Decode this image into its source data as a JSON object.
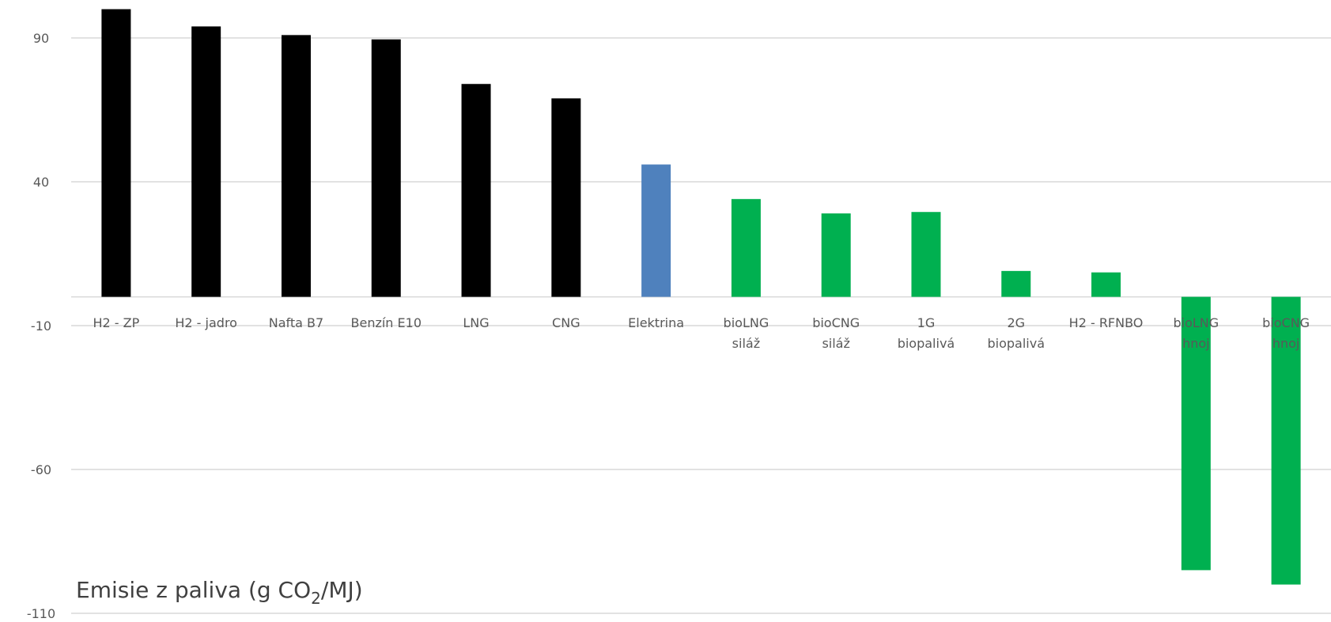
{
  "chart_data": {
    "type": "bar",
    "categories": [
      [
        "H2 - ZP"
      ],
      [
        "H2 - jadro"
      ],
      [
        "Nafta B7"
      ],
      [
        "Benzín E10"
      ],
      [
        "LNG"
      ],
      [
        "CNG"
      ],
      [
        "Elektrina"
      ],
      [
        "bioLNG",
        "siláž"
      ],
      [
        "bioCNG",
        "siláž"
      ],
      [
        "1G",
        "biopalivá"
      ],
      [
        "2G",
        "biopalivá"
      ],
      [
        "H2 - RFNBO"
      ],
      [
        "bioLNG",
        "hnoj"
      ],
      [
        "bioCNG",
        "hnoj"
      ]
    ],
    "values": [
      100,
      94,
      91,
      89.5,
      74,
      69,
      46,
      34,
      29,
      29.5,
      9,
      8.5,
      -95,
      -100
    ],
    "colors": [
      "#000000",
      "#000000",
      "#000000",
      "#000000",
      "#000000",
      "#000000",
      "#4f81bd",
      "#00b050",
      "#00b050",
      "#00b050",
      "#00b050",
      "#00b050",
      "#00b050",
      "#00b050"
    ],
    "ylim": [
      -110,
      90
    ],
    "yticks": [
      90,
      40,
      -10,
      -60,
      -110
    ],
    "grid": true,
    "annotation": {
      "prefix": "Emisie z paliva (g CO",
      "subscript": "2",
      "suffix": "/MJ)"
    }
  }
}
